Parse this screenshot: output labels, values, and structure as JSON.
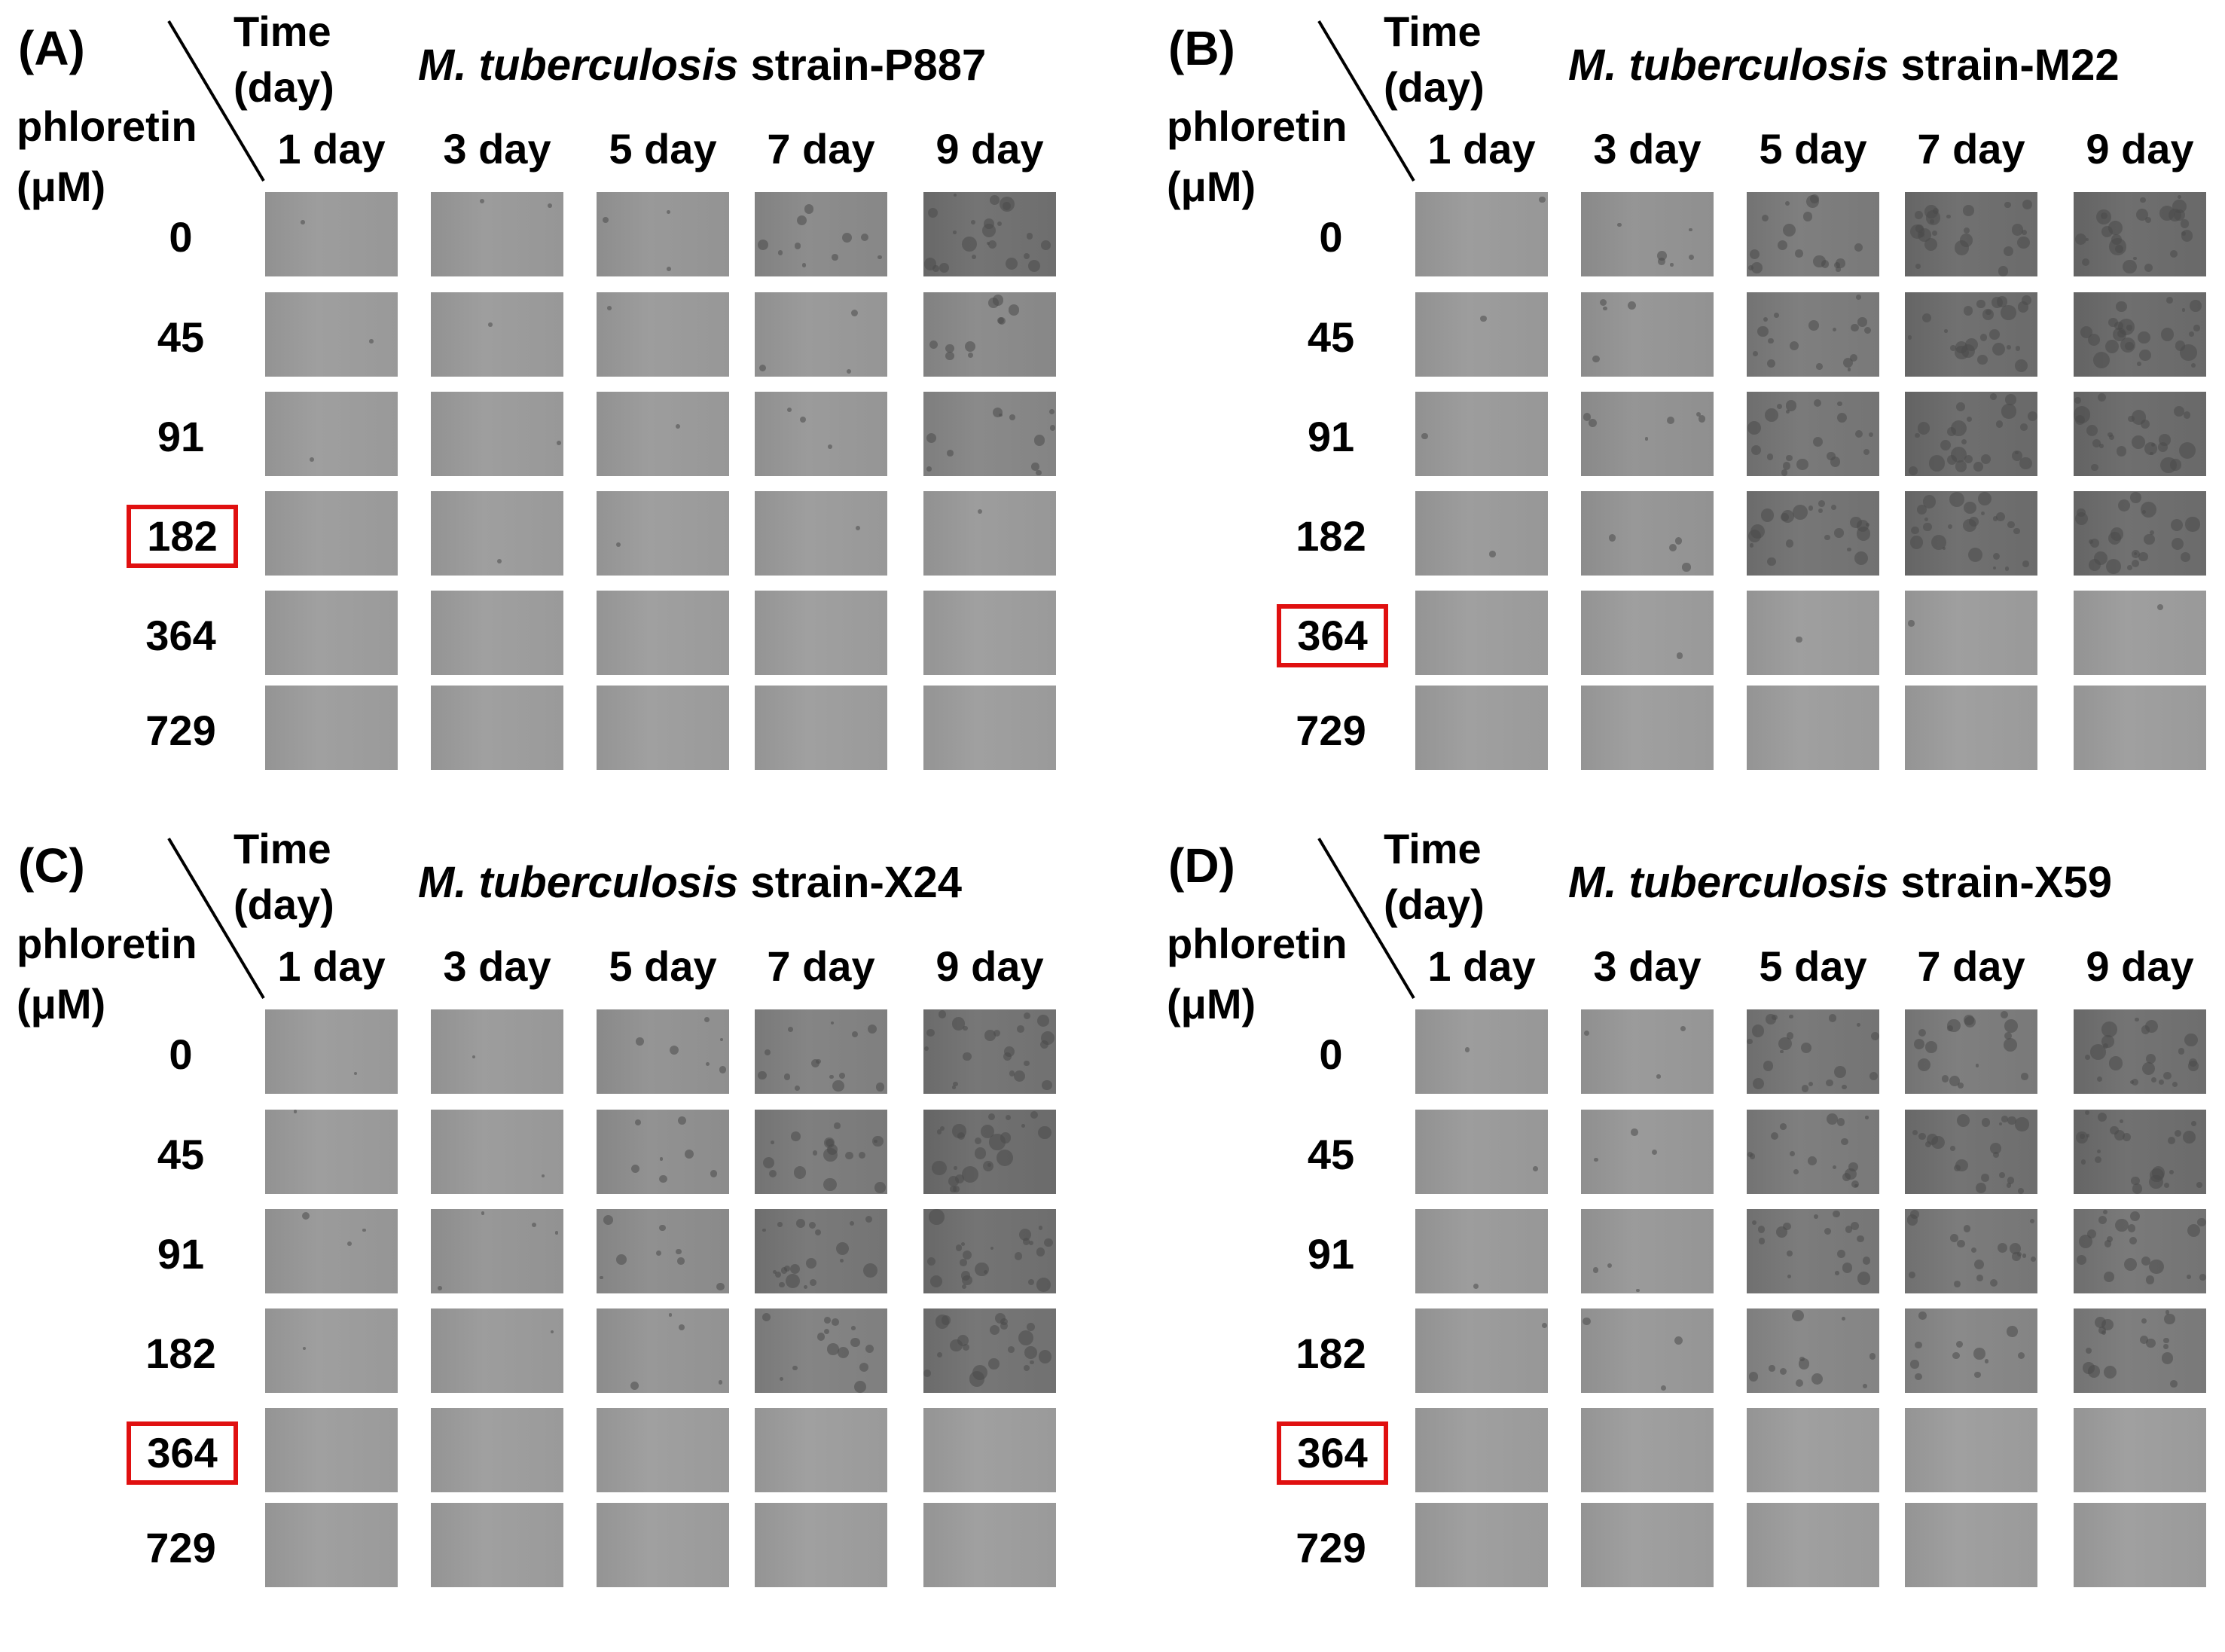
{
  "figure": {
    "columns": [
      "1 day",
      "3 day",
      "5 day",
      "7 day",
      "9 day"
    ],
    "time_header": [
      "Time",
      "(day)"
    ],
    "conc_header": [
      "phloretin",
      "(μM)"
    ],
    "highlight_color": "#e01010",
    "panels": [
      {
        "label": "(A)",
        "strain_italic": "M. tuberculosis",
        "strain_suffix": " strain-P887",
        "concentrations": [
          "0",
          "45",
          "91",
          "182",
          "364",
          "729"
        ],
        "highlighted": "182",
        "growth": [
          [
            0.05,
            0.08,
            0.12,
            0.35,
            0.8
          ],
          [
            0.02,
            0.03,
            0.05,
            0.1,
            0.35
          ],
          [
            0.02,
            0.03,
            0.05,
            0.1,
            0.4
          ],
          [
            0.01,
            0.02,
            0.02,
            0.03,
            0.05
          ],
          [
            0.0,
            0.0,
            0.0,
            0.0,
            0.0
          ],
          [
            0.0,
            0.0,
            0.0,
            0.0,
            0.0
          ]
        ]
      },
      {
        "label": "(B)",
        "strain_italic": "M. tuberculosis",
        "strain_suffix": " strain-M22",
        "concentrations": [
          "0",
          "45",
          "91",
          "182",
          "364",
          "729"
        ],
        "highlighted": "364",
        "growth": [
          [
            0.05,
            0.2,
            0.6,
            0.85,
            0.9
          ],
          [
            0.05,
            0.15,
            0.6,
            0.85,
            0.9
          ],
          [
            0.05,
            0.2,
            0.7,
            0.9,
            0.9
          ],
          [
            0.05,
            0.15,
            0.75,
            0.85,
            0.85
          ],
          [
            0.0,
            0.02,
            0.02,
            0.02,
            0.02
          ],
          [
            0.0,
            0.0,
            0.0,
            0.0,
            0.0
          ]
        ]
      },
      {
        "label": "(C)",
        "strain_italic": "M. tuberculosis",
        "strain_suffix": " strain-X24",
        "concentrations": [
          "0",
          "45",
          "91",
          "182",
          "364",
          "729"
        ],
        "highlighted": "364",
        "growth": [
          [
            0.03,
            0.05,
            0.2,
            0.5,
            0.75
          ],
          [
            0.03,
            0.05,
            0.25,
            0.6,
            0.85
          ],
          [
            0.1,
            0.15,
            0.3,
            0.7,
            0.8
          ],
          [
            0.02,
            0.05,
            0.15,
            0.5,
            0.75
          ],
          [
            0.0,
            0.0,
            0.0,
            0.0,
            0.0
          ],
          [
            0.0,
            0.0,
            0.0,
            0.0,
            0.0
          ]
        ]
      },
      {
        "label": "(D)",
        "strain_italic": "M. tuberculosis",
        "strain_suffix": " strain-X59",
        "concentrations": [
          "0",
          "45",
          "91",
          "182",
          "364",
          "729"
        ],
        "highlighted": "364",
        "growth": [
          [
            0.05,
            0.1,
            0.7,
            0.6,
            0.8
          ],
          [
            0.05,
            0.1,
            0.6,
            0.8,
            0.85
          ],
          [
            0.05,
            0.1,
            0.65,
            0.65,
            0.7
          ],
          [
            0.05,
            0.1,
            0.4,
            0.4,
            0.6
          ],
          [
            0.0,
            0.0,
            0.0,
            0.0,
            0.0
          ],
          [
            0.0,
            0.0,
            0.0,
            0.0,
            0.0
          ]
        ]
      }
    ]
  }
}
